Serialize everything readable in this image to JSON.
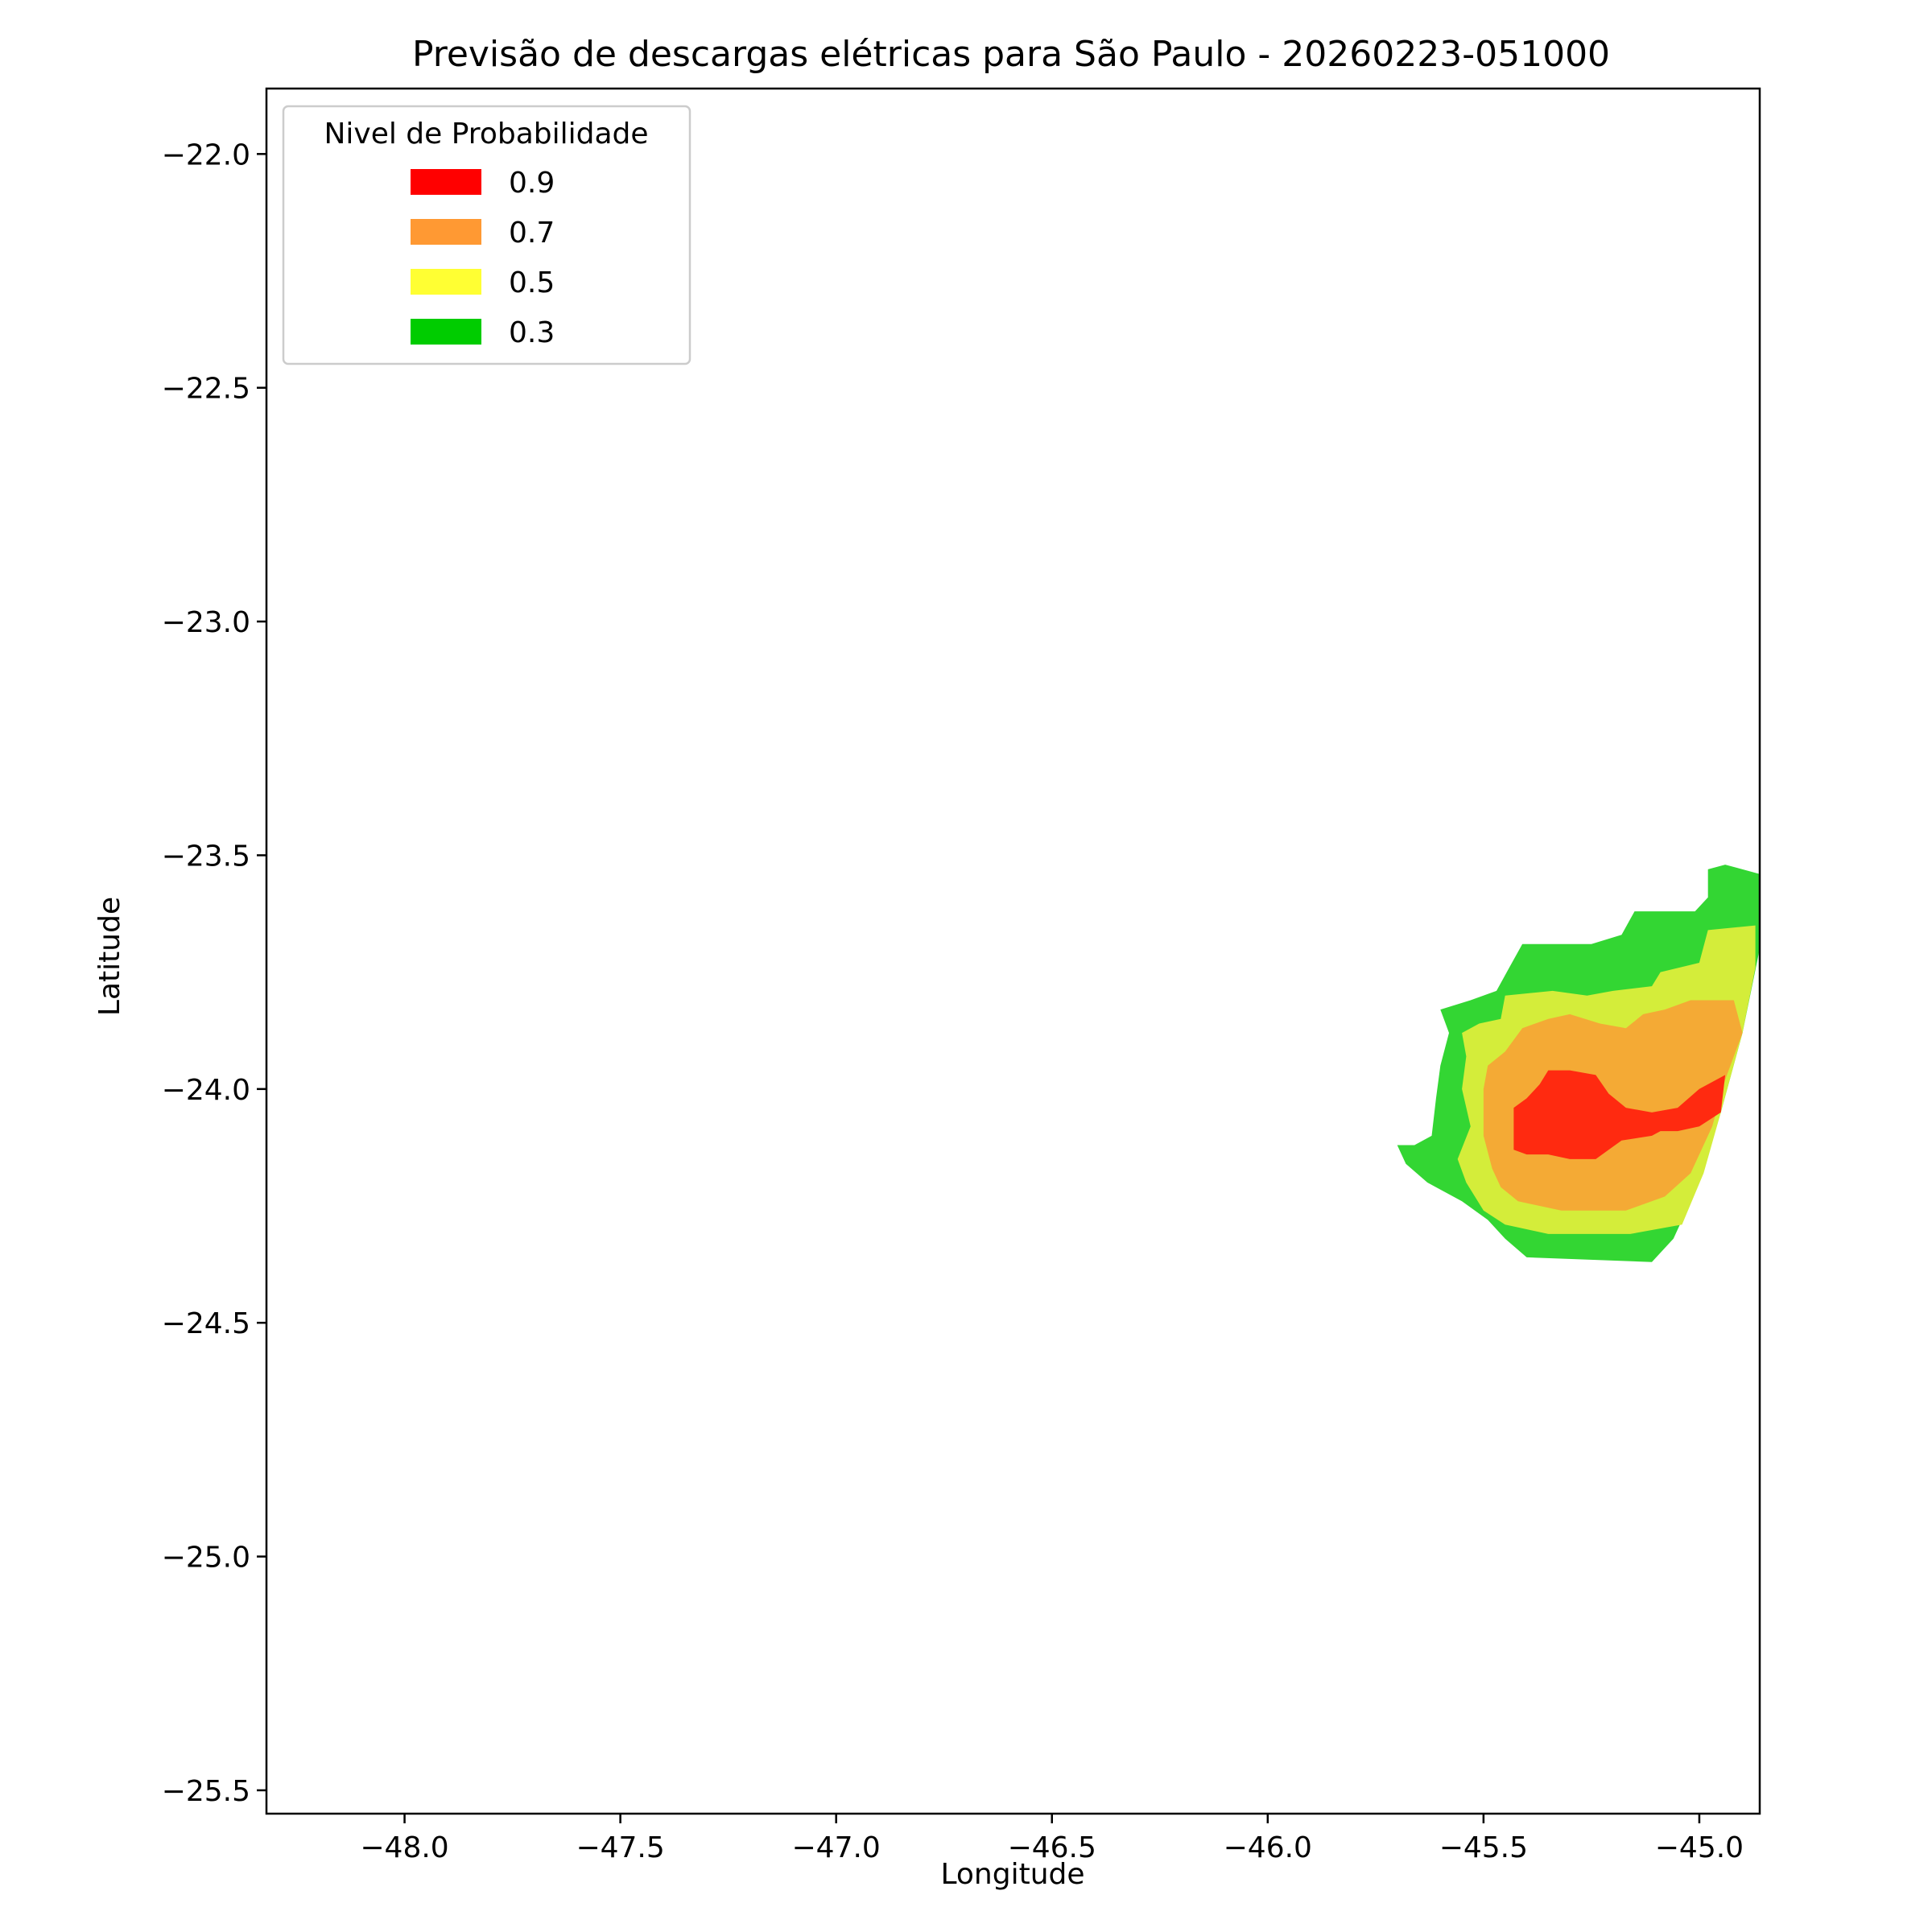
{
  "chart_data": {
    "type": "contour",
    "title": "Previsão de descargas elétricas para São Paulo - 20260223-051000",
    "xlabel": "Longitude",
    "ylabel": "Latitude",
    "xlim": [
      -48.32,
      -44.86
    ],
    "ylim": [
      -25.55,
      -21.86
    ],
    "x_ticks": [
      -48.0,
      -47.5,
      -47.0,
      -46.5,
      -46.0,
      -45.5,
      -45.0
    ],
    "x_tick_labels": [
      "−48.0",
      "−47.5",
      "−47.0",
      "−46.5",
      "−46.0",
      "−45.5",
      "−45.0"
    ],
    "y_ticks": [
      -22.0,
      -22.5,
      -23.0,
      -23.5,
      -24.0,
      -24.5,
      -25.0,
      -25.5
    ],
    "y_tick_labels": [
      "−22.0",
      "−22.5",
      "−23.0",
      "−23.5",
      "−24.0",
      "−24.5",
      "−25.0",
      "−25.5"
    ],
    "grid": false,
    "legend": {
      "title": "Nivel de Probabilidade",
      "placement": "upper-left",
      "entries": [
        {
          "label": "0.9",
          "color": "#ff0000"
        },
        {
          "label": "0.7",
          "color": "#ff9933"
        },
        {
          "label": "0.5",
          "color": "#ffff33"
        },
        {
          "label": "0.3",
          "color": "#00cc00"
        }
      ]
    },
    "series": [
      {
        "level": 0.3,
        "color": "#33d633",
        "polygon": [
          [
            -45.7,
            -24.12
          ],
          [
            -45.66,
            -24.12
          ],
          [
            -45.62,
            -24.1
          ],
          [
            -45.61,
            -24.02
          ],
          [
            -45.6,
            -23.95
          ],
          [
            -45.58,
            -23.88
          ],
          [
            -45.6,
            -23.83
          ],
          [
            -45.53,
            -23.81
          ],
          [
            -45.47,
            -23.79
          ],
          [
            -45.44,
            -23.74
          ],
          [
            -45.41,
            -23.69
          ],
          [
            -45.25,
            -23.69
          ],
          [
            -45.18,
            -23.67
          ],
          [
            -45.15,
            -23.62
          ],
          [
            -45.01,
            -23.62
          ],
          [
            -44.98,
            -23.59
          ],
          [
            -44.98,
            -23.53
          ],
          [
            -44.94,
            -23.52
          ],
          [
            -44.86,
            -23.54
          ],
          [
            -44.86,
            -23.7
          ],
          [
            -44.9,
            -23.88
          ],
          [
            -44.95,
            -24.05
          ],
          [
            -45.0,
            -24.2
          ],
          [
            -45.06,
            -24.32
          ],
          [
            -45.11,
            -24.37
          ],
          [
            -45.4,
            -24.36
          ],
          [
            -45.45,
            -24.32
          ],
          [
            -45.49,
            -24.28
          ],
          [
            -45.55,
            -24.24
          ],
          [
            -45.63,
            -24.2
          ],
          [
            -45.68,
            -24.16
          ]
        ]
      },
      {
        "level": 0.5,
        "color": "#d4ed3a",
        "polygon": [
          [
            -45.56,
            -24.15
          ],
          [
            -45.53,
            -24.08
          ],
          [
            -45.55,
            -24.0
          ],
          [
            -45.54,
            -23.93
          ],
          [
            -45.55,
            -23.88
          ],
          [
            -45.51,
            -23.86
          ],
          [
            -45.46,
            -23.85
          ],
          [
            -45.45,
            -23.8
          ],
          [
            -45.34,
            -23.79
          ],
          [
            -45.26,
            -23.8
          ],
          [
            -45.2,
            -23.79
          ],
          [
            -45.11,
            -23.78
          ],
          [
            -45.09,
            -23.75
          ],
          [
            -45.0,
            -23.73
          ],
          [
            -44.98,
            -23.66
          ],
          [
            -44.87,
            -23.65
          ],
          [
            -44.87,
            -23.74
          ],
          [
            -44.9,
            -23.88
          ],
          [
            -44.95,
            -24.05
          ],
          [
            -44.99,
            -24.18
          ],
          [
            -45.04,
            -24.29
          ],
          [
            -45.16,
            -24.31
          ],
          [
            -45.35,
            -24.31
          ],
          [
            -45.45,
            -24.29
          ],
          [
            -45.5,
            -24.26
          ],
          [
            -45.54,
            -24.2
          ]
        ]
      },
      {
        "level": 0.7,
        "color": "#f4aa35",
        "polygon": [
          [
            -45.48,
            -24.17
          ],
          [
            -45.5,
            -24.1
          ],
          [
            -45.5,
            -24.0
          ],
          [
            -45.49,
            -23.95
          ],
          [
            -45.45,
            -23.92
          ],
          [
            -45.41,
            -23.87
          ],
          [
            -45.35,
            -23.85
          ],
          [
            -45.3,
            -23.84
          ],
          [
            -45.23,
            -23.86
          ],
          [
            -45.17,
            -23.87
          ],
          [
            -45.13,
            -23.84
          ],
          [
            -45.08,
            -23.83
          ],
          [
            -45.02,
            -23.81
          ],
          [
            -44.92,
            -23.81
          ],
          [
            -44.9,
            -23.88
          ],
          [
            -44.94,
            -23.98
          ],
          [
            -44.97,
            -24.08
          ],
          [
            -45.02,
            -24.18
          ],
          [
            -45.08,
            -24.23
          ],
          [
            -45.17,
            -24.26
          ],
          [
            -45.32,
            -24.26
          ],
          [
            -45.42,
            -24.24
          ],
          [
            -45.46,
            -24.21
          ]
        ]
      },
      {
        "level": 0.9,
        "color": "#ff2a10",
        "polygon": [
          [
            -45.43,
            -24.13
          ],
          [
            -45.43,
            -24.04
          ],
          [
            -45.4,
            -24.02
          ],
          [
            -45.37,
            -23.99
          ],
          [
            -45.35,
            -23.96
          ],
          [
            -45.3,
            -23.96
          ],
          [
            -45.24,
            -23.97
          ],
          [
            -45.21,
            -24.01
          ],
          [
            -45.17,
            -24.04
          ],
          [
            -45.11,
            -24.05
          ],
          [
            -45.05,
            -24.04
          ],
          [
            -45.0,
            -24.0
          ],
          [
            -44.94,
            -23.97
          ],
          [
            -44.95,
            -24.05
          ],
          [
            -45.0,
            -24.08
          ],
          [
            -45.05,
            -24.09
          ],
          [
            -45.09,
            -24.09
          ],
          [
            -45.11,
            -24.1
          ],
          [
            -45.18,
            -24.11
          ],
          [
            -45.21,
            -24.13
          ],
          [
            -45.24,
            -24.15
          ],
          [
            -45.3,
            -24.15
          ],
          [
            -45.35,
            -24.14
          ],
          [
            -45.4,
            -24.14
          ]
        ]
      }
    ]
  }
}
